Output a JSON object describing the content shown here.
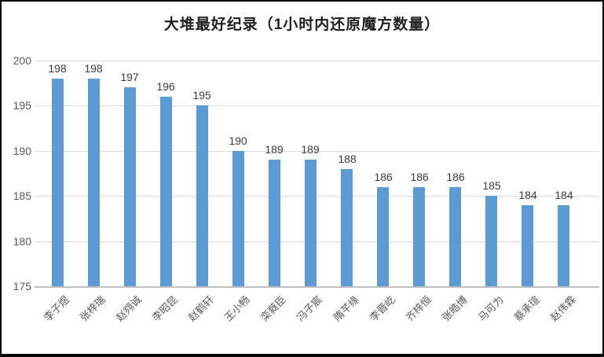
{
  "chart_data": {
    "type": "bar",
    "title": "大堆最好纪录（1小时内还原魔方数量）",
    "categories": [
      "李子煜",
      "张梓瑞",
      "赵翙诚",
      "李昭昆",
      "赵鹤轩",
      "王小畅",
      "栾蕤臣",
      "冯子宸",
      "隋芊缘",
      "李晋屹",
      "齐梓恒",
      "张皓博",
      "马可为",
      "蔡承瑄",
      "赵伟霖"
    ],
    "values": [
      198,
      198,
      197,
      196,
      195,
      190,
      189,
      189,
      188,
      186,
      186,
      186,
      185,
      184,
      184
    ],
    "xlabel": "",
    "ylabel": "",
    "ylim": [
      175,
      200
    ],
    "yticks": [
      175,
      180,
      185,
      190,
      195,
      200
    ],
    "grid": true,
    "legend_position": "none",
    "data_labels_shown": true,
    "colors": {
      "bar": "#5B9BD5",
      "gridline": "#d9d9d9",
      "axis_line": "#bfbfbf",
      "data_label": "#3b3b3b",
      "tick_label": "#595959",
      "title": "#1f1f1f",
      "frame": "#000000",
      "background": "#ffffff"
    }
  }
}
